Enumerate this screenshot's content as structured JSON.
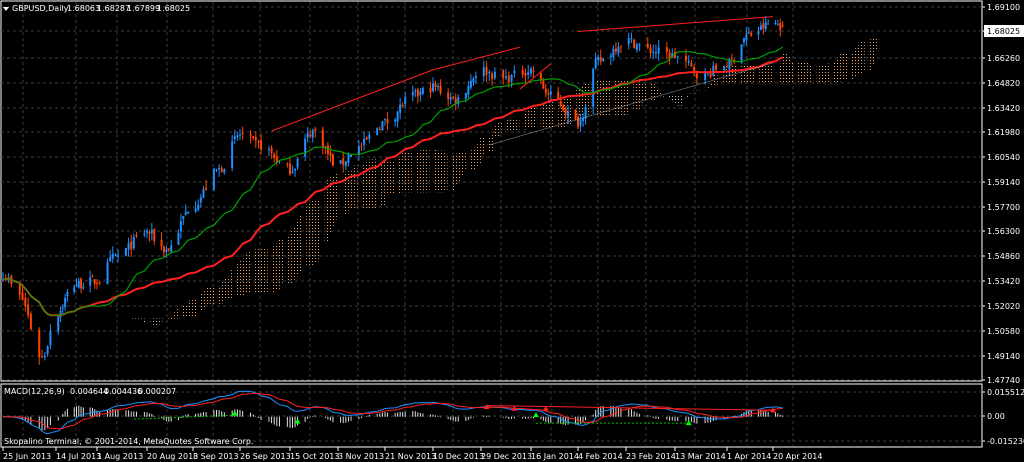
{
  "chart_data": [
    {
      "type": "candlestick",
      "symbol_label": "GBPUSD,Daily",
      "ohlc_readout": [
        "1.68063",
        "1.68287",
        "1.67899",
        "1.68025"
      ],
      "current_price": "1.68025",
      "y_tick_labels": [
        "1.69100",
        "1.67700",
        "1.66260",
        "1.64820",
        "1.63420",
        "1.61980",
        "1.60540",
        "1.59140",
        "1.57700",
        "1.56300",
        "1.54860",
        "1.53420",
        "1.52020",
        "1.50580",
        "1.49140",
        "1.47740"
      ],
      "ylim": [
        1.4774,
        1.691
      ],
      "x_tick_labels": [
        "25 Jun 2013",
        "14 Jul 2013",
        "1 Aug 2013",
        "20 Aug 2013",
        "8 Sep 2013",
        "26 Sep 2013",
        "15 Oct 2013",
        "3 Nov 2013",
        "21 Nov 2013",
        "10 Dec 2013",
        "29 Dec 2013",
        "16 Jan 2014",
        "4 Feb 2014",
        "23 Feb 2014",
        "13 Mar 2014",
        "1 Apr 2014",
        "20 Apr 2014"
      ],
      "price_anchors": {
        "dates": [
          "25 Jun 2013",
          "1 Jul 2013",
          "9 Jul 2013",
          "14 Jul 2013",
          "22 Jul 2013",
          "1 Aug 2013",
          "8 Aug 2013",
          "20 Aug 2013",
          "28 Aug 2013",
          "8 Sep 2013",
          "18 Sep 2013",
          "26 Sep 2013",
          "3 Oct 2013",
          "15 Oct 2013",
          "24 Oct 2013",
          "3 Nov 2013",
          "10 Nov 2013",
          "21 Nov 2013",
          "2 Dec 2013",
          "10 Dec 2013",
          "19 Dec 2013",
          "29 Dec 2013",
          "6 Jan 2014",
          "16 Jan 2014",
          "24 Jan 2014",
          "4 Feb 2014",
          "12 Feb 2014",
          "23 Feb 2014",
          "4 Mar 2014",
          "13 Mar 2014",
          "23 Mar 2014",
          "1 Apr 2014",
          "10 Apr 2014",
          "20 Apr 2014",
          "24 Apr 2014"
        ],
        "close": [
          1.538,
          1.525,
          1.49,
          1.515,
          1.532,
          1.534,
          1.548,
          1.562,
          1.552,
          1.578,
          1.598,
          1.618,
          1.612,
          1.598,
          1.62,
          1.6,
          1.61,
          1.625,
          1.64,
          1.645,
          1.638,
          1.655,
          1.65,
          1.655,
          1.64,
          1.625,
          1.66,
          1.672,
          1.666,
          1.663,
          1.652,
          1.658,
          1.675,
          1.682,
          1.6803
        ]
      },
      "series": [
        {
          "name": "Ichimoku Kumo (cloud)",
          "style": "dotted band",
          "color": "#f4a460"
        },
        {
          "name": "Slow moving average",
          "color": "#ff2020"
        },
        {
          "name": "Fast moving average",
          "color": "#00a000"
        }
      ],
      "candle_colors": {
        "up": "#1e90ff",
        "down": "#ff4500"
      }
    },
    {
      "type": "histogram+line",
      "indicator_label": "MACD(12,26,9)",
      "values": [
        "0.004644",
        "0.004436",
        "0.000207"
      ],
      "y_tick_labels": [
        "0.015512",
        "0.00",
        "-0.015230"
      ],
      "ylim": [
        -0.01523,
        0.015512
      ],
      "series": [
        {
          "name": "MACD",
          "color": "#1e90ff"
        },
        {
          "name": "Signal",
          "color": "#ff2020"
        }
      ]
    }
  ],
  "footer": {
    "copyright": "Skopalino Terminal, © 2001-2014, MetaQuotes Software Corp."
  },
  "colors": {
    "background": "#000000",
    "grid": "#3c3c3c",
    "axis": "#ffffff",
    "cloud": "#f4a460"
  }
}
